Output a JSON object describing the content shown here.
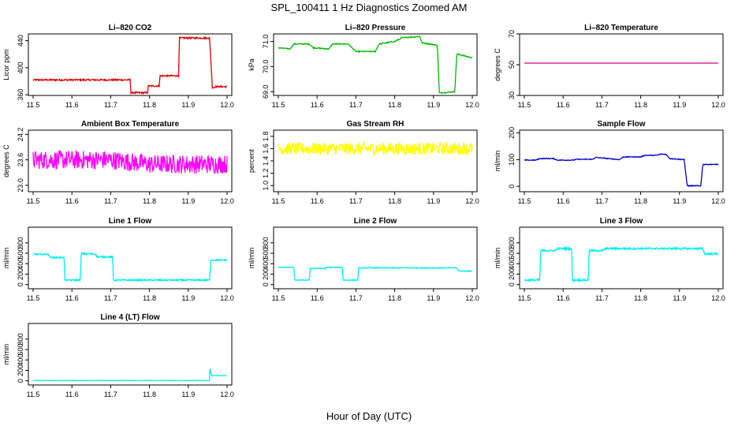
{
  "figure": {
    "title": "SPL_100411  1 Hz Diagnostics Zoomed AM",
    "xlabel": "Hour of Day (UTC)"
  },
  "chart_data": [
    {
      "type": "line",
      "title": "Li–820 CO2",
      "xlabel": "",
      "ylabel": "Licor ppm",
      "xlim": [
        11.5,
        12.0
      ],
      "ylim": [
        359,
        450
      ],
      "x_ticks": [
        "11.5",
        "11.6",
        "11.7",
        "11.8",
        "11.9",
        "12.0"
      ],
      "y_ticks": [
        "360",
        "400",
        "440"
      ],
      "y_tick_values": [
        360,
        400,
        440
      ],
      "color": "#dd0000",
      "noise": 1.2,
      "series": [
        {
          "x": [
            11.5,
            11.75,
            11.752,
            11.795,
            11.797,
            11.825,
            11.827,
            11.875,
            11.877,
            11.955,
            11.962,
            11.97,
            12.0
          ],
          "values": [
            382,
            382,
            363,
            363,
            373,
            373,
            388,
            388,
            444,
            444,
            370,
            372,
            372
          ]
        }
      ]
    },
    {
      "type": "line",
      "title": "Li–820 Pressure",
      "xlabel": "",
      "ylabel": "kPa",
      "xlim": [
        11.5,
        12.0
      ],
      "ylim": [
        68.85,
        71.3
      ],
      "x_ticks": [
        "11.5",
        "11.6",
        "11.7",
        "11.8",
        "11.9",
        "12.0"
      ],
      "y_ticks": [
        "69.0",
        "70.0",
        "71.0"
      ],
      "y_tick_values": [
        69.0,
        70.0,
        71.0
      ],
      "color": "#00bb00",
      "noise": 0.02,
      "series": [
        {
          "x": [
            11.5,
            11.53,
            11.54,
            11.58,
            11.59,
            11.63,
            11.64,
            11.68,
            11.7,
            11.75,
            11.76,
            11.8,
            11.82,
            11.865,
            11.87,
            11.91,
            11.915,
            11.955,
            11.96,
            12.0
          ],
          "values": [
            70.75,
            70.7,
            70.9,
            70.9,
            70.75,
            70.7,
            70.9,
            70.9,
            70.6,
            70.6,
            70.9,
            71.0,
            71.15,
            71.2,
            70.95,
            70.85,
            68.95,
            69.0,
            70.5,
            70.35
          ]
        }
      ]
    },
    {
      "type": "line",
      "title": "Li–820 Temperature",
      "xlabel": "",
      "ylabel": "degrees C",
      "xlim": [
        11.5,
        12.0
      ],
      "ylim": [
        30,
        70
      ],
      "x_ticks": [
        "11.5",
        "11.6",
        "11.7",
        "11.8",
        "11.9",
        "12.0"
      ],
      "y_ticks": [
        "30",
        "50",
        "70"
      ],
      "y_tick_values": [
        30,
        50,
        70
      ],
      "color": "#cc0088",
      "noise": 0,
      "series": [
        {
          "x": [
            11.5,
            12.0
          ],
          "values": [
            51,
            51
          ]
        }
      ]
    },
    {
      "type": "line",
      "title": "Ambient Box Temperature",
      "xlabel": "",
      "ylabel": "degrees C",
      "xlim": [
        11.5,
        12.0
      ],
      "ylim": [
        22.85,
        24.3
      ],
      "x_ticks": [
        "11.5",
        "11.6",
        "11.7",
        "11.8",
        "11.9",
        "12.0"
      ],
      "y_ticks": [
        "23.0",
        "23.6",
        "24.2"
      ],
      "y_tick_values": [
        23.0,
        23.6,
        24.2
      ],
      "color": "#ff00ff",
      "noise": 0.22,
      "series": [
        {
          "x": [
            11.5,
            11.6,
            11.7,
            11.8,
            11.9,
            12.0
          ],
          "values": [
            23.6,
            23.6,
            23.6,
            23.5,
            23.5,
            23.5
          ]
        }
      ]
    },
    {
      "type": "line",
      "title": "Gas Stream RH",
      "xlabel": "",
      "ylabel": "percent",
      "xlim": [
        11.5,
        12.0
      ],
      "ylim": [
        0.9,
        1.9
      ],
      "x_ticks": [
        "11.5",
        "11.6",
        "11.7",
        "11.8",
        "11.9",
        "12.0"
      ],
      "y_ticks": [
        "1.0",
        "1.2",
        "1.4",
        "1.6",
        "1.8"
      ],
      "y_tick_values": [
        1.0,
        1.2,
        1.4,
        1.6,
        1.8
      ],
      "color": "#ffff00",
      "noise": 0.1,
      "series": [
        {
          "x": [
            11.5,
            12.0
          ],
          "values": [
            1.6,
            1.6
          ]
        }
      ]
    },
    {
      "type": "line",
      "title": "Sample Flow",
      "xlabel": "",
      "ylabel": "ml/min",
      "xlim": [
        11.5,
        12.0
      ],
      "ylim": [
        -20,
        210
      ],
      "x_ticks": [
        "11.5",
        "11.6",
        "11.7",
        "11.8",
        "11.9",
        "12.0"
      ],
      "y_ticks": [
        "0",
        "100",
        "200"
      ],
      "y_tick_values": [
        0,
        100,
        200
      ],
      "color": "#0000cc",
      "noise": 1.5,
      "series": [
        {
          "x": [
            11.5,
            11.53,
            11.54,
            11.575,
            11.585,
            11.625,
            11.635,
            11.675,
            11.685,
            11.745,
            11.755,
            11.8,
            11.81,
            11.84,
            11.85,
            11.865,
            11.875,
            11.912,
            11.92,
            11.955,
            11.96,
            12.0
          ],
          "values": [
            98,
            98,
            104,
            104,
            98,
            98,
            101,
            101,
            108,
            100,
            110,
            110,
            116,
            116,
            120,
            120,
            104,
            100,
            2,
            2,
            82,
            82
          ]
        }
      ]
    },
    {
      "type": "line",
      "title": "Line 1 Flow",
      "xlabel": "",
      "ylabel": "ml/min",
      "xlim": [
        11.5,
        12.0
      ],
      "ylim": [
        -80,
        1100
      ],
      "x_ticks": [
        "11.5",
        "11.6",
        "11.7",
        "11.8",
        "11.9",
        "12.0"
      ],
      "y_ticks": [
        "0",
        "200",
        "400",
        "600",
        "800"
      ],
      "y_tick_values": [
        0,
        200,
        400,
        600,
        800
      ],
      "color": "#00eeee",
      "noise": 14,
      "series": [
        {
          "x": [
            11.5,
            11.54,
            11.545,
            11.58,
            11.582,
            11.622,
            11.624,
            11.66,
            11.665,
            11.705,
            11.707,
            11.955,
            11.958,
            12.0
          ],
          "values": [
            580,
            580,
            520,
            520,
            85,
            85,
            590,
            590,
            530,
            530,
            85,
            85,
            470,
            470
          ]
        }
      ]
    },
    {
      "type": "line",
      "title": "Line 2 Flow",
      "xlabel": "",
      "ylabel": "ml/min",
      "xlim": [
        11.5,
        12.0
      ],
      "ylim": [
        -80,
        1100
      ],
      "x_ticks": [
        "11.5",
        "11.6",
        "11.7",
        "11.8",
        "11.9",
        "12.0"
      ],
      "y_ticks": [
        "0",
        "200",
        "400",
        "600",
        "800"
      ],
      "y_tick_values": [
        0,
        200,
        400,
        600,
        800
      ],
      "color": "#00eeee",
      "noise": 8,
      "series": [
        {
          "x": [
            11.5,
            11.54,
            11.542,
            11.58,
            11.582,
            11.622,
            11.624,
            11.665,
            11.667,
            11.705,
            11.707,
            11.96,
            11.965,
            12.0
          ],
          "values": [
            330,
            330,
            85,
            85,
            310,
            310,
            330,
            330,
            85,
            85,
            320,
            320,
            260,
            260
          ]
        }
      ]
    },
    {
      "type": "line",
      "title": "Line 3 Flow",
      "xlabel": "",
      "ylabel": "ml/min",
      "xlim": [
        11.5,
        12.0
      ],
      "ylim": [
        -80,
        1100
      ],
      "x_ticks": [
        "11.5",
        "11.6",
        "11.7",
        "11.8",
        "11.9",
        "12.0"
      ],
      "y_ticks": [
        "0",
        "200",
        "400",
        "600",
        "800"
      ],
      "y_tick_values": [
        0,
        200,
        400,
        600,
        800
      ],
      "color": "#00eeee",
      "noise": 18,
      "series": [
        {
          "x": [
            11.5,
            11.54,
            11.542,
            11.58,
            11.585,
            11.622,
            11.624,
            11.665,
            11.667,
            11.7,
            11.71,
            11.96,
            11.965,
            12.0
          ],
          "values": [
            85,
            85,
            650,
            650,
            690,
            690,
            85,
            85,
            650,
            650,
            690,
            690,
            590,
            590
          ]
        }
      ]
    },
    {
      "type": "line",
      "title": "Line 4 (LT) Flow",
      "xlabel": "",
      "ylabel": "ml/min",
      "xlim": [
        11.5,
        12.0
      ],
      "ylim": [
        -80,
        1100
      ],
      "x_ticks": [
        "11.5",
        "11.6",
        "11.7",
        "11.8",
        "11.9",
        "12.0"
      ],
      "y_ticks": [
        "0",
        "200",
        "400",
        "600",
        "800"
      ],
      "y_tick_values": [
        0,
        200,
        400,
        600,
        800
      ],
      "color": "#00eeee",
      "noise": 2,
      "series": [
        {
          "x": [
            11.5,
            11.955,
            11.956,
            11.96,
            11.962,
            12.0
          ],
          "values": [
            5,
            5,
            240,
            110,
            100,
            100
          ]
        }
      ]
    }
  ]
}
